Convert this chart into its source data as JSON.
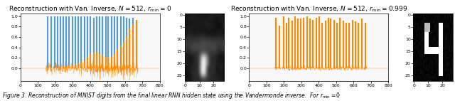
{
  "title_left": "Reconstruction with Van. Inverse, $N = 512$, $r_{\\min} = 0$",
  "title_right": "Reconstruction with Van. Inverse, $N = 512$, $r_{\\min} = 0.999$",
  "caption": "Figure 3. Reconstruction of MNIST digits from the final linear RNN hidden state using the Vandermonde inverse.  For $r_{\\mathrm{min}} = 0$",
  "line_color_blue": "#5599dd",
  "line_color_orange": "#ff8800",
  "bg_color": "#f8f8f8",
  "xlim": [
    0,
    800
  ],
  "ylim_line": [
    -0.25,
    1.05
  ],
  "yticks_line": [
    0.0,
    0.2,
    0.4,
    0.6,
    0.8,
    1.0
  ],
  "xticks_line": [
    0,
    100,
    200,
    300,
    400,
    500,
    600,
    700,
    800
  ],
  "spike_positions_left": [
    155,
    175,
    197,
    213,
    228,
    247,
    263,
    280,
    298,
    315,
    333,
    350,
    368,
    385,
    403,
    420,
    438,
    455,
    470,
    490,
    505,
    523,
    540,
    558,
    575,
    593,
    610,
    628,
    648,
    668
  ],
  "spike_heights_left_blue": [
    1.0,
    1.0,
    1.0,
    1.0,
    1.0,
    1.0,
    1.0,
    1.0,
    1.0,
    1.0,
    1.0,
    1.0,
    1.0,
    1.0,
    1.0,
    0.97,
    1.0,
    1.0,
    1.0,
    1.0,
    1.0,
    1.0,
    1.0,
    1.0,
    1.0,
    1.0,
    0.97,
    0.95,
    0.97,
    0.93
  ],
  "spike_heights_left_orange": [
    0.01,
    0.01,
    0.02,
    0.02,
    0.03,
    0.04,
    0.04,
    0.05,
    0.06,
    0.08,
    0.1,
    0.12,
    0.15,
    0.2,
    0.28,
    0.3,
    0.32,
    0.28,
    0.25,
    0.22,
    0.2,
    0.22,
    0.28,
    0.35,
    0.42,
    0.5,
    0.62,
    0.75,
    0.85,
    0.93
  ],
  "spike_positions_right": [
    155,
    175,
    197,
    213,
    228,
    247,
    263,
    280,
    298,
    315,
    333,
    350,
    368,
    385,
    403,
    420,
    438,
    455,
    470,
    490,
    505,
    523,
    540,
    558,
    575,
    593,
    610,
    628,
    648,
    668
  ],
  "spike_heights_right_blue": [
    0.12,
    0.06,
    0.06,
    0.06,
    0.06,
    0.06,
    0.06,
    0.06,
    0.06,
    0.08,
    0.06,
    0.06,
    0.06,
    0.08,
    0.06,
    0.06,
    0.06,
    0.06,
    0.06,
    0.06,
    0.06,
    0.06,
    0.06,
    0.06,
    0.06,
    0.08,
    0.06,
    0.08,
    0.06,
    0.06
  ],
  "spike_heights_right_orange": [
    0.97,
    0.82,
    1.0,
    0.88,
    0.97,
    0.92,
    1.0,
    0.95,
    0.95,
    0.97,
    1.0,
    0.95,
    0.93,
    0.97,
    1.0,
    0.88,
    0.92,
    0.97,
    0.95,
    0.93,
    0.88,
    0.97,
    0.92,
    0.88,
    0.88,
    0.93,
    0.9,
    0.88,
    0.95,
    0.88
  ],
  "title_fontsize": 6.5,
  "caption_fontsize": 5.5,
  "tick_fontsize": 4.5
}
